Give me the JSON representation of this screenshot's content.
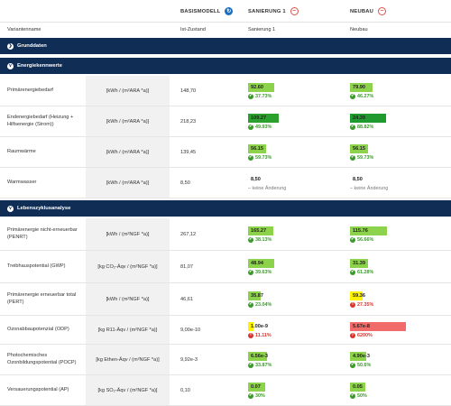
{
  "header": {
    "basismodell": "BASISMODELL",
    "sanierung": "SANIERUNG 1",
    "neubau": "NEUBAU",
    "refresh_icon": "refresh-icon",
    "remove_icon": "minus-circle-icon"
  },
  "subheader": {
    "variantenname": "Variantenname",
    "ist": "Ist-Zustand",
    "sanierung": "Sanierung 1",
    "neubau": "Neubau"
  },
  "sections": {
    "grunddaten": "Grunddaten",
    "energie": "Energiekennwerte",
    "lca": "Lebenszyklusanalyse"
  },
  "colors": {
    "navy": "#0f2d55",
    "green_light": "#8cd24a",
    "green_dark": "#2ca02c",
    "yellow": "#fff200",
    "red": "#f26b6b",
    "good": "#3a9a2a",
    "bad": "#d9352e"
  },
  "rows": [
    {
      "name": "Primärenergiebedarf",
      "unit": "[kWh / (m²ARA *a)]",
      "ist": "148,70",
      "s_val": "92.60",
      "s_fill": 0.3,
      "s_color": "#8cd24a",
      "s_delta": "37.73%",
      "s_type": "good",
      "n_val": "79.90",
      "n_fill": 0.26,
      "n_color": "#8cd24a",
      "n_delta": "46.27%",
      "n_type": "good"
    },
    {
      "name": "Endenergiebedarf (Heizung + Hilfsenergie (Strom))",
      "unit": "[kWh / (m²ARA *a)]",
      "ist": "218,23",
      "s_val": "109.27",
      "s_fill": 0.36,
      "s_color": "#2ca02c",
      "s_delta": "49.93%",
      "s_type": "good",
      "n_val": "24.39",
      "n_fill": 0.42,
      "n_color": "#1f9a2f",
      "n_delta": "88.82%",
      "n_type": "good"
    },
    {
      "name": "Raumwärme",
      "unit": "[kWh / (m²ARA *a)]",
      "ist": "139,45",
      "s_val": "56.15",
      "s_fill": 0.21,
      "s_color": "#8cd24a",
      "s_delta": "59.73%",
      "s_type": "good",
      "n_val": "56.15",
      "n_fill": 0.21,
      "n_color": "#8cd24a",
      "n_delta": "59.73%",
      "n_type": "good"
    },
    {
      "name": "Warmwasser",
      "unit": "[kWh / (m²ARA *a)]",
      "ist": "8,50",
      "s_val": "8,50",
      "s_fill": 0,
      "s_color": "",
      "s_delta": "– keine Änderung",
      "s_type": "none",
      "n_val": "8,50",
      "n_fill": 0,
      "n_color": "",
      "n_delta": "– keine Änderung",
      "n_type": "none"
    },
    {
      "name": "Primärenergie nicht-erneuerbar (PENRT)",
      "unit": "[kWh / (m²NGF *a)]",
      "ist": "267,12",
      "s_val": "165.27",
      "s_fill": 0.29,
      "s_color": "#8cd24a",
      "s_delta": "38.13%",
      "s_type": "good",
      "n_val": "115.76",
      "n_fill": 0.43,
      "n_color": "#8cd24a",
      "n_delta": "56.66%",
      "n_type": "good"
    },
    {
      "name": "Treibhauspotential (GWP)",
      "unit": "[kg CO₂-Äqv / (m²NGF *a)]",
      "ist": "81,07",
      "s_val": "48.94",
      "s_fill": 0.3,
      "s_color": "#8cd24a",
      "s_delta": "39.63%",
      "s_type": "good",
      "n_val": "31.39",
      "n_fill": 0.21,
      "n_color": "#8cd24a",
      "n_delta": "61.28%",
      "n_type": "good"
    },
    {
      "name": "Primärenergie erneuerbar total (PERT)",
      "unit": "[kWh / (m²NGF *a)]",
      "ist": "46,61",
      "s_val": "35.87",
      "s_fill": 0.15,
      "s_color": "#8cd24a",
      "s_delta": "23.04%",
      "s_type": "good",
      "n_val": "59.36",
      "n_fill": 0.15,
      "n_color": "#fff200",
      "n_delta": "27.35%",
      "n_type": "bad"
    },
    {
      "name": "Ozonabbaupotenzial (ODP)",
      "unit": "[kg R11-Äqv / (m²NGF *a)]",
      "ist": "9,00e-10",
      "s_val": "1.00e-9",
      "s_fill": 0.02,
      "s_color": "#fff200",
      "s_delta": "11.11%",
      "s_type": "bad",
      "n_val": "5.67e-8",
      "n_fill": 0.65,
      "n_color": "#f26b6b",
      "n_delta": "6200%",
      "n_type": "bad"
    },
    {
      "name": "Photochemisches Ozonbildungspotential (POCP)",
      "unit": "[kg Ethen-Äqv / (m²NGF *a)]",
      "ist": "9,92e-3",
      "s_val": "6.56e-3",
      "s_fill": 0.22,
      "s_color": "#8cd24a",
      "s_delta": "33.87%",
      "s_type": "good",
      "n_val": "4.90e-3",
      "n_fill": 0.19,
      "n_color": "#8cd24a",
      "n_delta": "50.6%",
      "n_type": "good"
    },
    {
      "name": "Versauerungspotential (AP)",
      "unit": "[kg SO₂-Äqv / (m²NGF *a)]",
      "ist": "0,10",
      "s_val": "0.07",
      "s_fill": 0.2,
      "s_color": "#8cd24a",
      "s_delta": "30%",
      "s_type": "good",
      "n_val": "0.05",
      "n_fill": 0.18,
      "n_color": "#8cd24a",
      "n_delta": "50%",
      "n_type": "good"
    }
  ]
}
